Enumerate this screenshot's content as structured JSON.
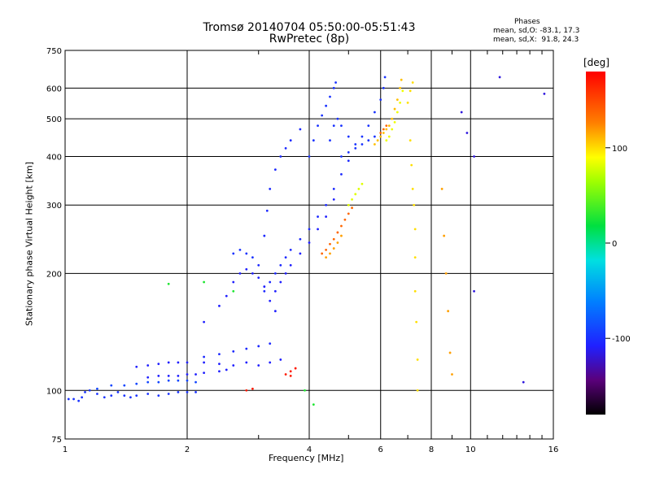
{
  "header": {
    "title_line1": "Tromsø 20140704 05:50:00-05:51:43",
    "title_line2": "RwPretec (8p)",
    "stats_title": "Phases",
    "stats_o": "mean, sd,O: -83.1, 17.3",
    "stats_x": "mean, sd,X:  91.8, 24.3"
  },
  "chart_data": {
    "type": "scatter",
    "xlabel": "Frequency [MHz]",
    "ylabel": "Stationary phase Virtual Height [km]",
    "x_scale": "log",
    "y_scale": "log",
    "xlim": [
      1,
      16
    ],
    "ylim": [
      75,
      750
    ],
    "xticks": [
      1,
      2,
      4,
      6,
      8,
      10,
      16
    ],
    "yticks": [
      75,
      100,
      200,
      300,
      400,
      500,
      600,
      750
    ],
    "grid": true,
    "colorbar": {
      "label": "[deg]",
      "ticks": [
        100,
        0,
        -100
      ],
      "range": [
        -180,
        180
      ],
      "colormap": "rainbow"
    },
    "series": [
      {
        "phase": -100,
        "points": [
          [
            1.02,
            95
          ],
          [
            1.05,
            95
          ],
          [
            1.08,
            94
          ],
          [
            1.1,
            96
          ],
          [
            1.12,
            99
          ],
          [
            1.15,
            100
          ],
          [
            1.2,
            98
          ],
          [
            1.25,
            96
          ],
          [
            1.3,
            97
          ],
          [
            1.35,
            99
          ],
          [
            1.4,
            97
          ],
          [
            1.45,
            96
          ],
          [
            1.5,
            97
          ],
          [
            1.6,
            98
          ],
          [
            1.7,
            97
          ],
          [
            1.8,
            98
          ],
          [
            1.9,
            99
          ],
          [
            2.0,
            99
          ],
          [
            2.1,
            99
          ]
        ]
      },
      {
        "phase": -90,
        "points": [
          [
            1.2,
            101
          ],
          [
            1.3,
            103
          ],
          [
            1.4,
            103
          ],
          [
            1.5,
            104
          ],
          [
            1.6,
            105
          ],
          [
            1.7,
            105
          ],
          [
            1.8,
            106
          ],
          [
            1.9,
            106
          ],
          [
            2.0,
            106
          ],
          [
            2.1,
            105
          ]
        ]
      },
      {
        "phase": -110,
        "points": [
          [
            1.5,
            115
          ],
          [
            1.6,
            116
          ],
          [
            1.7,
            117
          ],
          [
            1.8,
            118
          ],
          [
            1.9,
            118
          ],
          [
            2.0,
            118
          ],
          [
            2.2,
            118
          ],
          [
            2.4,
            117
          ],
          [
            2.6,
            116
          ],
          [
            2.8,
            118
          ],
          [
            3.0,
            116
          ],
          [
            3.2,
            118
          ],
          [
            3.4,
            120
          ]
        ]
      },
      {
        "phase": -110,
        "points": [
          [
            1.6,
            108
          ],
          [
            1.7,
            109
          ],
          [
            1.8,
            109
          ],
          [
            1.9,
            109
          ],
          [
            2.0,
            110
          ],
          [
            2.1,
            110
          ],
          [
            2.2,
            111
          ],
          [
            2.4,
            112
          ],
          [
            2.5,
            113
          ]
        ]
      },
      {
        "phase": -105,
        "points": [
          [
            2.2,
            122
          ],
          [
            2.4,
            124
          ],
          [
            2.6,
            126
          ],
          [
            2.8,
            128
          ],
          [
            3.0,
            130
          ],
          [
            3.2,
            132
          ]
        ]
      },
      {
        "phase": -110,
        "points": [
          [
            2.2,
            150
          ],
          [
            2.4,
            165
          ],
          [
            2.5,
            175
          ],
          [
            2.6,
            190
          ],
          [
            2.7,
            200
          ],
          [
            2.8,
            205
          ],
          [
            2.9,
            200
          ],
          [
            3.0,
            195
          ],
          [
            3.1,
            185
          ],
          [
            3.2,
            170
          ],
          [
            3.3,
            160
          ]
        ]
      },
      {
        "phase": -100,
        "points": [
          [
            2.6,
            225
          ],
          [
            2.7,
            230
          ],
          [
            2.8,
            225
          ],
          [
            2.9,
            220
          ]
        ]
      },
      {
        "phase": -105,
        "points": [
          [
            3.0,
            210
          ],
          [
            3.1,
            250
          ],
          [
            3.15,
            290
          ],
          [
            3.2,
            330
          ],
          [
            3.3,
            370
          ],
          [
            3.4,
            400
          ],
          [
            3.5,
            420
          ],
          [
            3.6,
            440
          ],
          [
            3.8,
            470
          ]
        ]
      },
      {
        "phase": -105,
        "points": [
          [
            3.1,
            180
          ],
          [
            3.2,
            190
          ],
          [
            3.3,
            200
          ],
          [
            3.4,
            210
          ],
          [
            3.5,
            220
          ],
          [
            3.6,
            230
          ],
          [
            3.8,
            245
          ],
          [
            4.0,
            260
          ],
          [
            4.2,
            280
          ],
          [
            4.4,
            300
          ],
          [
            4.6,
            330
          ],
          [
            4.8,
            360
          ],
          [
            5.0,
            390
          ]
        ]
      },
      {
        "phase": -110,
        "points": [
          [
            3.3,
            180
          ],
          [
            3.4,
            190
          ],
          [
            3.5,
            200
          ],
          [
            3.6,
            210
          ],
          [
            3.8,
            225
          ],
          [
            4.0,
            240
          ],
          [
            4.2,
            260
          ],
          [
            4.4,
            280
          ],
          [
            4.6,
            310
          ]
        ]
      },
      {
        "phase": -100,
        "points": [
          [
            4.0,
            400
          ],
          [
            4.1,
            440
          ],
          [
            4.2,
            480
          ],
          [
            4.3,
            510
          ],
          [
            4.4,
            540
          ],
          [
            4.5,
            570
          ],
          [
            4.6,
            600
          ],
          [
            4.65,
            620
          ]
        ]
      },
      {
        "phase": -100,
        "points": [
          [
            4.5,
            440
          ],
          [
            4.6,
            480
          ],
          [
            4.7,
            500
          ],
          [
            4.8,
            480
          ],
          [
            5.0,
            450
          ],
          [
            5.2,
            430
          ],
          [
            5.4,
            450
          ],
          [
            5.6,
            480
          ],
          [
            5.8,
            520
          ],
          [
            6.0,
            560
          ],
          [
            6.1,
            600
          ],
          [
            6.15,
            640
          ]
        ]
      },
      {
        "phase": -100,
        "points": [
          [
            4.8,
            400
          ],
          [
            5.0,
            410
          ],
          [
            5.2,
            420
          ],
          [
            5.4,
            430
          ],
          [
            5.6,
            440
          ],
          [
            5.8,
            450
          ]
        ]
      },
      {
        "phase": 140,
        "points": [
          [
            4.3,
            225
          ],
          [
            4.4,
            230
          ],
          [
            4.5,
            238
          ],
          [
            4.6,
            245
          ],
          [
            4.7,
            255
          ],
          [
            4.8,
            265
          ],
          [
            4.9,
            275
          ],
          [
            5.0,
            285
          ],
          [
            5.1,
            295
          ]
        ]
      },
      {
        "phase": 120,
        "points": [
          [
            4.4,
            220
          ],
          [
            4.5,
            225
          ],
          [
            4.6,
            232
          ],
          [
            4.7,
            240
          ],
          [
            4.8,
            250
          ]
        ]
      },
      {
        "phase": 80,
        "points": [
          [
            5.0,
            300
          ],
          [
            5.1,
            310
          ],
          [
            5.2,
            320
          ],
          [
            5.3,
            330
          ],
          [
            5.4,
            340
          ]
        ]
      },
      {
        "phase": 110,
        "points": [
          [
            5.8,
            430
          ],
          [
            5.9,
            440
          ],
          [
            6.0,
            450
          ],
          [
            6.1,
            460
          ],
          [
            6.2,
            470
          ],
          [
            6.3,
            480
          ],
          [
            6.4,
            500
          ],
          [
            6.5,
            530
          ],
          [
            6.6,
            560
          ],
          [
            6.7,
            600
          ],
          [
            6.75,
            630
          ]
        ]
      },
      {
        "phase": 85,
        "points": [
          [
            6.2,
            440
          ],
          [
            6.3,
            450
          ],
          [
            6.4,
            470
          ],
          [
            6.5,
            490
          ],
          [
            6.6,
            520
          ],
          [
            6.7,
            550
          ],
          [
            6.8,
            590
          ]
        ]
      },
      {
        "phase": 140,
        "points": [
          [
            6.0,
            460
          ],
          [
            6.1,
            470
          ],
          [
            6.2,
            480
          ]
        ]
      },
      {
        "phase": 100,
        "points": [
          [
            7.0,
            550
          ],
          [
            7.1,
            590
          ],
          [
            7.2,
            620
          ],
          [
            7.1,
            440
          ],
          [
            7.15,
            380
          ],
          [
            7.2,
            330
          ],
          [
            7.25,
            300
          ],
          [
            7.3,
            260
          ],
          [
            7.3,
            220
          ],
          [
            7.3,
            180
          ],
          [
            7.35,
            150
          ],
          [
            7.4,
            120
          ],
          [
            7.4,
            100
          ]
        ]
      },
      {
        "phase": 120,
        "points": [
          [
            8.5,
            330
          ],
          [
            8.6,
            250
          ],
          [
            8.7,
            200
          ],
          [
            8.8,
            160
          ],
          [
            8.9,
            125
          ],
          [
            9.0,
            110
          ]
        ]
      },
      {
        "phase": -120,
        "points": [
          [
            9.5,
            520
          ],
          [
            9.8,
            460
          ],
          [
            10.2,
            400
          ],
          [
            10.2,
            180
          ],
          [
            11.8,
            640
          ],
          [
            15.2,
            580
          ],
          [
            13.5,
            105
          ]
        ]
      },
      {
        "phase": 170,
        "points": [
          [
            3.5,
            110
          ],
          [
            3.6,
            112
          ],
          [
            3.7,
            114
          ],
          [
            2.8,
            100
          ],
          [
            2.9,
            101
          ],
          [
            3.6,
            109
          ]
        ]
      },
      {
        "phase": 20,
        "points": [
          [
            2.6,
            180
          ],
          [
            2.2,
            190
          ],
          [
            1.8,
            188
          ],
          [
            3.9,
            100
          ],
          [
            4.1,
            92
          ]
        ]
      }
    ]
  }
}
